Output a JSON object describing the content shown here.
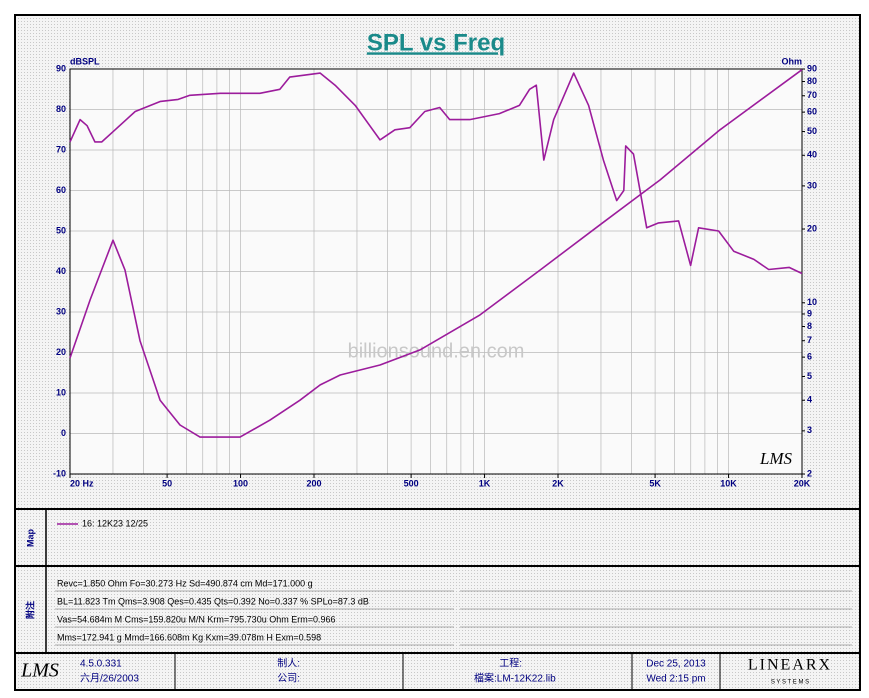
{
  "chart_data": {
    "type": "line",
    "title": "SPL vs Freq",
    "ylabel": "dBSPL",
    "y2label": "Ohm",
    "watermark": "billionsound.en.com",
    "logo": "LMS",
    "legend": "16: 12K23 12/25",
    "color": "#9c1c9c",
    "xlog": true,
    "y2log": true,
    "grid": true,
    "xlim": [
      20,
      20000
    ],
    "ylim": [
      -10,
      90
    ],
    "y2lim": [
      2,
      90
    ],
    "xticks": [
      {
        "value": 20,
        "label": "20  Hz"
      },
      50,
      100,
      200,
      500,
      {
        "value": 1000,
        "label": "1K"
      },
      {
        "value": 2000,
        "label": "2K"
      },
      {
        "value": 5000,
        "label": "5K"
      },
      {
        "value": 10000,
        "label": "10K"
      },
      {
        "value": 20000,
        "label": "20K"
      }
    ],
    "xgrid": [
      20,
      30,
      40,
      50,
      60,
      70,
      80,
      90,
      100,
      200,
      300,
      400,
      500,
      600,
      700,
      800,
      900,
      1000,
      2000,
      3000,
      4000,
      5000,
      6000,
      7000,
      8000,
      9000,
      10000,
      20000
    ],
    "yticks": [
      -10,
      0,
      10,
      20,
      30,
      40,
      50,
      60,
      70,
      80,
      90
    ],
    "y2ticks": [
      2,
      3,
      4,
      5,
      6,
      7,
      8,
      9,
      10,
      20,
      30,
      40,
      50,
      60,
      70,
      80,
      90
    ],
    "series": [
      {
        "color": "#9c1c9c",
        "x": [
          20,
          22,
          23.5,
          25.3,
          27,
          30.6,
          37,
          47,
          55.5,
          62,
          82.6,
          120,
          145,
          159,
          212,
          244,
          295,
          373,
          429,
          494,
          569,
          655,
          720,
          870,
          1150,
          1390,
          1530,
          1630,
          1750,
          1920,
          2320,
          2670,
          3070,
          3480,
          3720,
          3790,
          4080,
          4620,
          5170,
          6240,
          6990,
          7540,
          9100,
          10500,
          12700,
          14600,
          17700,
          20000
        ],
        "values": [
          72,
          77.5,
          76,
          72,
          72,
          75,
          79.5,
          82,
          82.5,
          83.5,
          84,
          84,
          85,
          88,
          89,
          86,
          81,
          72.5,
          75,
          75.5,
          79.5,
          80.5,
          77.5,
          77.5,
          79,
          81,
          85,
          86,
          67.5,
          77.5,
          89,
          81,
          67.5,
          57.5,
          60,
          71,
          69,
          50.8,
          52,
          52.5,
          41.5,
          50.8,
          50,
          45,
          43,
          40.5,
          41,
          39.5
        ]
      },
      {
        "color": "#9c1c9c",
        "axis": "y2",
        "x": [
          20,
          24.2,
          30,
          33.6,
          38.7,
          46.8,
          56.5,
          68.2,
          99.5,
          132,
          175,
          212,
          256,
          373,
          544,
          958,
          1688,
          2972,
          5236,
          9226,
          20000
        ],
        "values": [
          5.95,
          10.3,
          18,
          13.6,
          7,
          4,
          3.17,
          2.83,
          2.83,
          3.32,
          4,
          4.62,
          5.07,
          5.57,
          6.42,
          8.92,
          13.6,
          20.8,
          31.7,
          50.8,
          89.4
        ]
      }
    ]
  },
  "map": {
    "label": "Map"
  },
  "notes": {
    "label": "附注",
    "lines": [
      "Revc=1.850 Ohm  Fo=30.273 Hz  Sd=490.874 cm    Md=171.000 g",
      "BL=11.823 Tm  Qms=3.908  Qes=0.435  Qts=0.392  No=0.337 %  SPLo=87.3 dB",
      "Vas=54.684m M    Cms=159.820u M/N  Krm=795.730u Ohm   Erm=0.966",
      "Mms=172.941 g   Mmd=166.608m Kg   Kxm=39.078m H   Exm=0.598"
    ]
  },
  "footer": {
    "logo": "LMS",
    "version": "4.5.0.331",
    "version_date": "六月/26/2003",
    "maker": "制人:",
    "company": "公司:",
    "project": "工程:",
    "file": "檔案:LM-12K22.lib",
    "date": "Dec 25, 2013",
    "time": "Wed  2:15 pm",
    "brand": "LINEARX",
    "brand_sub": "S Y S T E M S"
  }
}
